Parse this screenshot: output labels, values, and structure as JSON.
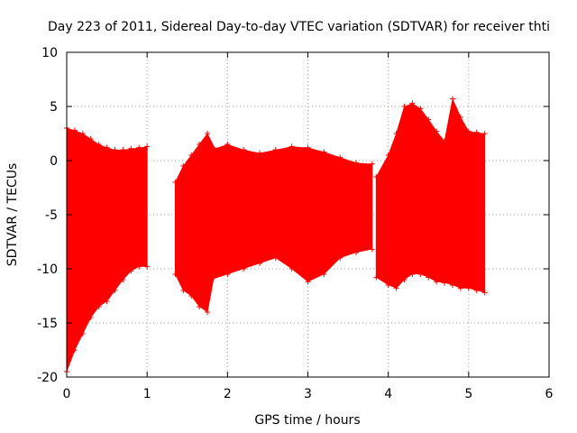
{
  "chart_data": {
    "type": "scatter",
    "title": "Day 223 of 2011, Sidereal Day-to-day VTEC variation (SDTVAR) for receiver thti",
    "xlabel": "GPS time / hours",
    "ylabel": "SDTVAR / TECUs",
    "xlim": [
      0,
      6
    ],
    "ylim": [
      -20,
      10
    ],
    "xticks": [
      0,
      1,
      2,
      3,
      4,
      5,
      6
    ],
    "yticks": [
      -20,
      -15,
      -10,
      -5,
      0,
      5,
      10
    ],
    "grid": true,
    "marker": "plus",
    "series": [
      {
        "color": "#ff0000",
        "style": "error-bars",
        "segments": [
          {
            "x": [
              0.0,
              0.1,
              0.2,
              0.3,
              0.4,
              0.5,
              0.6,
              0.7,
              0.8,
              0.9,
              1.0
            ],
            "upper": [
              3.0,
              2.8,
              2.5,
              2.0,
              1.5,
              1.2,
              1.0,
              1.0,
              1.1,
              1.2,
              1.3
            ],
            "lower": [
              -19.5,
              -17.5,
              -16.0,
              -14.5,
              -13.5,
              -13.0,
              -12.0,
              -11.0,
              -10.2,
              -9.8,
              -9.8
            ]
          },
          {
            "x": [
              1.35,
              1.45,
              1.55,
              1.65,
              1.75,
              1.85
            ],
            "upper": [
              -2.0,
              -0.5,
              0.5,
              1.5,
              2.5,
              1.0
            ],
            "lower": [
              -10.5,
              -12.0,
              -12.5,
              -13.5,
              -14.0,
              -10.0
            ]
          },
          {
            "x": [
              1.8,
              2.0,
              2.2,
              2.4,
              2.6,
              2.8,
              3.0,
              3.2,
              3.4,
              3.6,
              3.8
            ],
            "upper": [
              1.0,
              1.5,
              1.0,
              0.7,
              1.0,
              1.3,
              1.2,
              0.8,
              0.3,
              -0.2,
              -0.3
            ],
            "lower": [
              -11.0,
              -10.5,
              -10.0,
              -9.5,
              -9.0,
              -10.0,
              -11.2,
              -10.5,
              -9.0,
              -8.5,
              -8.2
            ]
          },
          {
            "x": [
              3.85,
              4.0,
              4.1,
              4.2,
              4.3,
              4.4,
              4.5,
              4.6,
              4.7,
              4.8,
              4.9,
              5.0,
              5.1,
              5.2
            ],
            "upper": [
              -1.5,
              0.5,
              2.5,
              5.0,
              5.3,
              4.8,
              3.8,
              2.7,
              1.8,
              5.7,
              4.0,
              2.7,
              2.6,
              2.5
            ],
            "lower": [
              -10.8,
              -11.5,
              -11.8,
              -11.0,
              -10.5,
              -10.5,
              -10.8,
              -11.2,
              -11.3,
              -11.5,
              -11.8,
              -11.8,
              -12.0,
              -12.2
            ]
          }
        ]
      }
    ]
  }
}
